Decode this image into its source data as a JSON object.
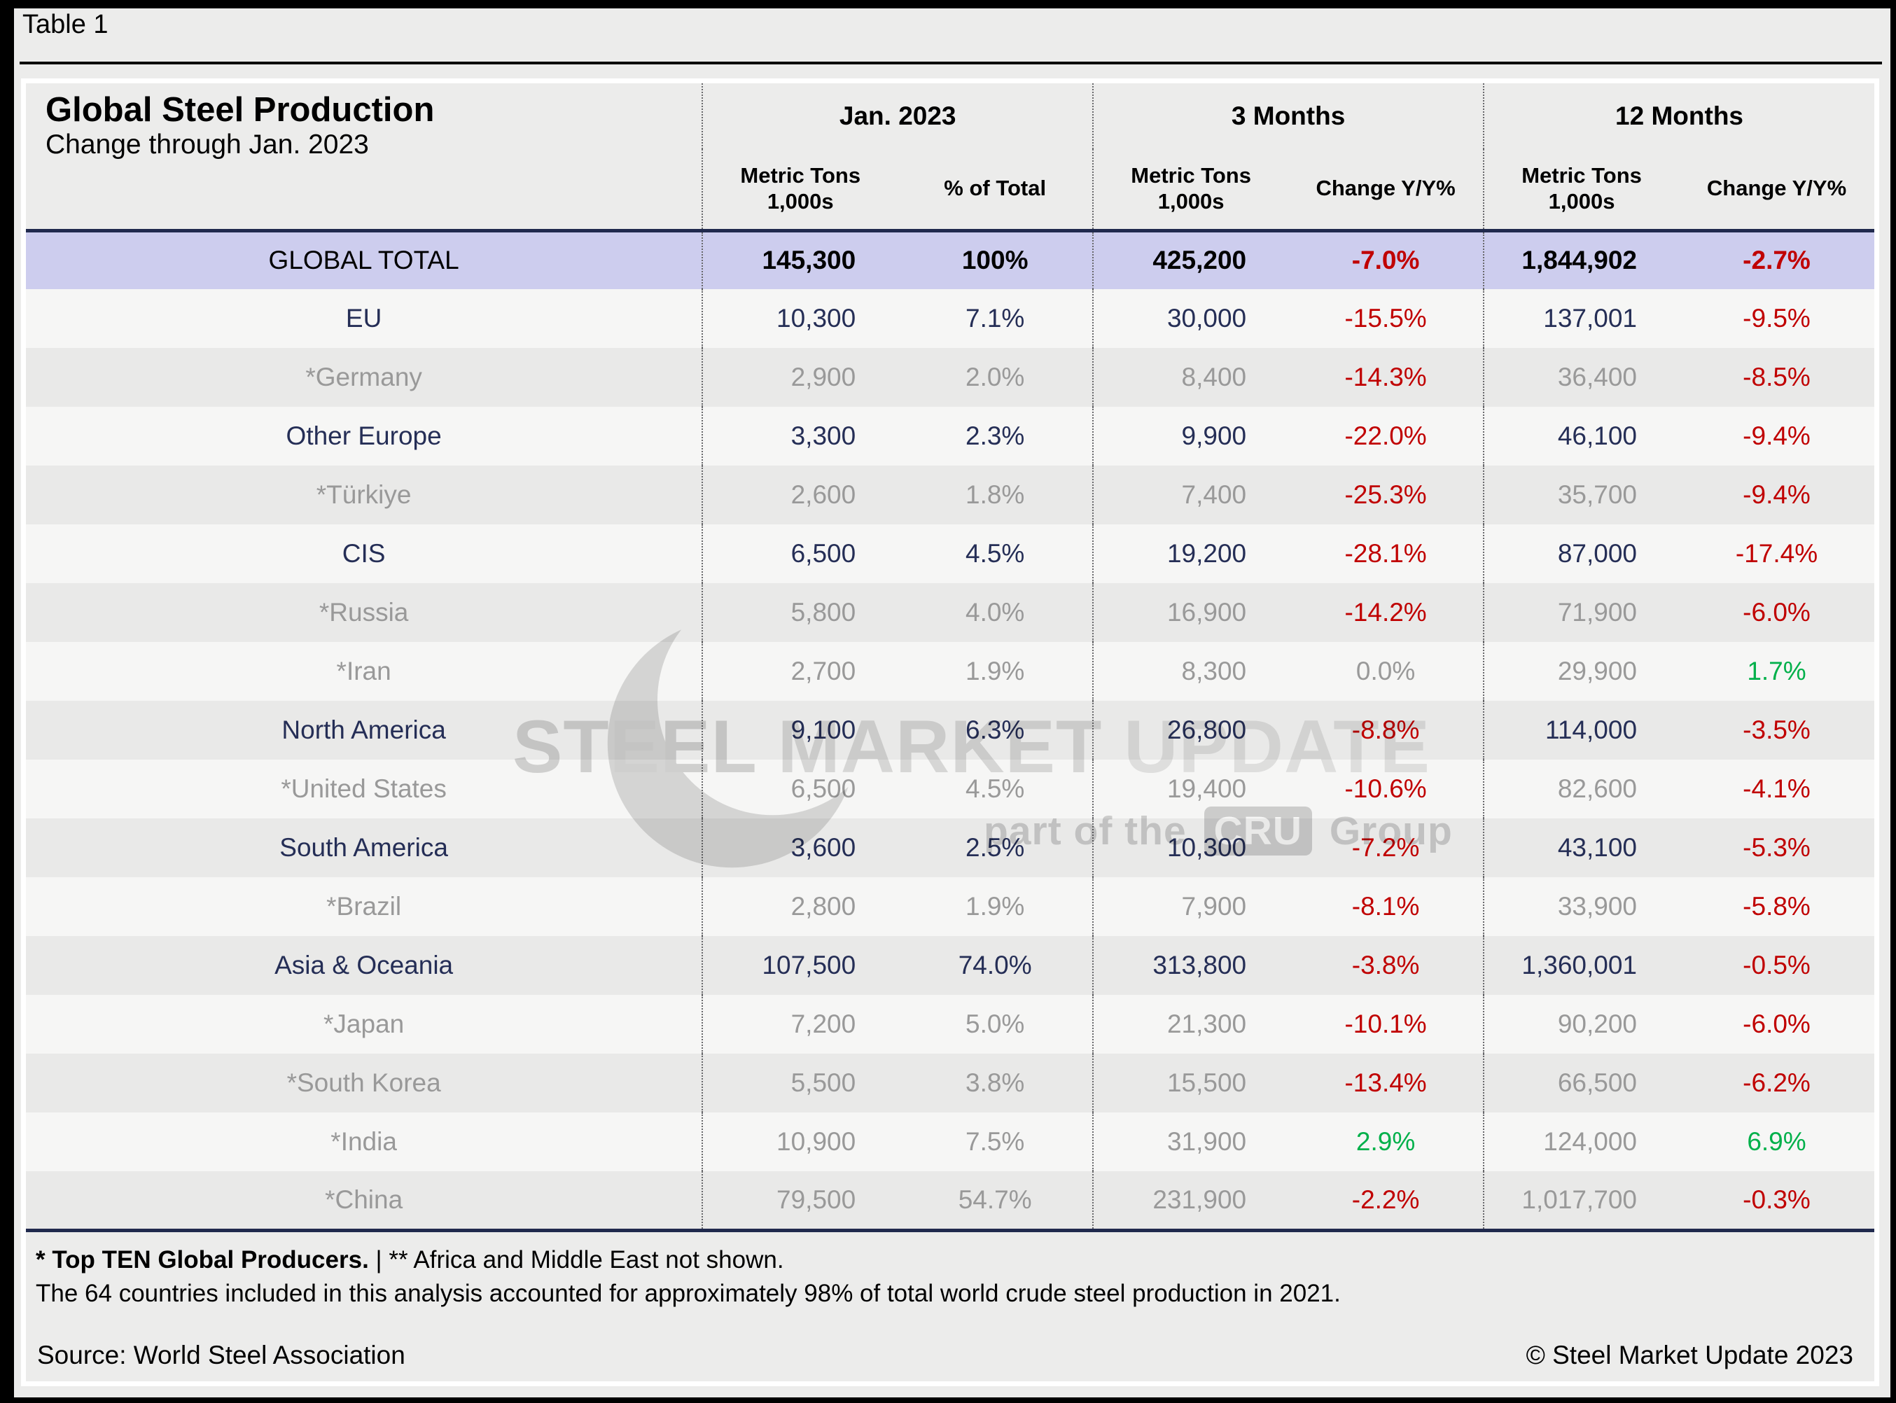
{
  "page": {
    "label": "Table 1"
  },
  "chart_data": {
    "type": "table",
    "title": "Global Steel Production",
    "subtitle": "Change through Jan. 2023",
    "groups": [
      {
        "label": "Jan. 2023",
        "subcols": [
          [
            "Metric Tons",
            "1,000s"
          ],
          [
            "% of Total"
          ]
        ]
      },
      {
        "label": "3 Months",
        "subcols": [
          [
            "Metric Tons",
            "1,000s"
          ],
          [
            "Change Y/Y%"
          ]
        ]
      },
      {
        "label": "12 Months",
        "subcols": [
          [
            "Metric Tons",
            "1,000s"
          ],
          [
            "Change Y/Y%"
          ]
        ]
      }
    ],
    "rows": [
      {
        "label": "GLOBAL TOTAL",
        "type": "total",
        "values": [
          "145,300",
          "100%",
          "425,200",
          "-7.0%",
          "1,844,902",
          "-2.7%"
        ],
        "value_colors": [
          "plain",
          "plain",
          "plain",
          "neg",
          "plain",
          "neg"
        ]
      },
      {
        "label": "EU",
        "type": "region",
        "values": [
          "10,300",
          "7.1%",
          "30,000",
          "-15.5%",
          "137,001",
          "-9.5%"
        ],
        "value_colors": [
          "plain",
          "plain",
          "plain",
          "neg",
          "plain",
          "neg"
        ]
      },
      {
        "label": "*Germany",
        "type": "country",
        "values": [
          "2,900",
          "2.0%",
          "8,400",
          "-14.3%",
          "36,400",
          "-8.5%"
        ],
        "value_colors": [
          "plain",
          "plain",
          "plain",
          "neg",
          "plain",
          "neg"
        ]
      },
      {
        "label": "Other Europe",
        "type": "region",
        "values": [
          "3,300",
          "2.3%",
          "9,900",
          "-22.0%",
          "46,100",
          "-9.4%"
        ],
        "value_colors": [
          "plain",
          "plain",
          "plain",
          "neg",
          "plain",
          "neg"
        ]
      },
      {
        "label": "*Türkiye",
        "type": "country",
        "values": [
          "2,600",
          "1.8%",
          "7,400",
          "-25.3%",
          "35,700",
          "-9.4%"
        ],
        "value_colors": [
          "plain",
          "plain",
          "plain",
          "neg",
          "plain",
          "neg"
        ]
      },
      {
        "label": "CIS",
        "type": "region",
        "values": [
          "6,500",
          "4.5%",
          "19,200",
          "-28.1%",
          "87,000",
          "-17.4%"
        ],
        "value_colors": [
          "plain",
          "plain",
          "plain",
          "neg",
          "plain",
          "neg"
        ]
      },
      {
        "label": "*Russia",
        "type": "country",
        "values": [
          "5,800",
          "4.0%",
          "16,900",
          "-14.2%",
          "71,900",
          "-6.0%"
        ],
        "value_colors": [
          "plain",
          "plain",
          "plain",
          "neg",
          "plain",
          "neg"
        ]
      },
      {
        "label": "*Iran",
        "type": "country",
        "values": [
          "2,700",
          "1.9%",
          "8,300",
          "0.0%",
          "29,900",
          "1.7%"
        ],
        "value_colors": [
          "plain",
          "plain",
          "plain",
          "plain",
          "plain",
          "pos"
        ]
      },
      {
        "label": "North America",
        "type": "region",
        "values": [
          "9,100",
          "6.3%",
          "26,800",
          "-8.8%",
          "114,000",
          "-3.5%"
        ],
        "value_colors": [
          "plain",
          "plain",
          "plain",
          "neg",
          "plain",
          "neg"
        ]
      },
      {
        "label": "*United States",
        "type": "country",
        "values": [
          "6,500",
          "4.5%",
          "19,400",
          "-10.6%",
          "82,600",
          "-4.1%"
        ],
        "value_colors": [
          "plain",
          "plain",
          "plain",
          "neg",
          "plain",
          "neg"
        ]
      },
      {
        "label": "South America",
        "type": "region",
        "values": [
          "3,600",
          "2.5%",
          "10,300",
          "-7.2%",
          "43,100",
          "-5.3%"
        ],
        "value_colors": [
          "plain",
          "plain",
          "plain",
          "neg",
          "plain",
          "neg"
        ]
      },
      {
        "label": "*Brazil",
        "type": "country",
        "values": [
          "2,800",
          "1.9%",
          "7,900",
          "-8.1%",
          "33,900",
          "-5.8%"
        ],
        "value_colors": [
          "plain",
          "plain",
          "plain",
          "neg",
          "plain",
          "neg"
        ]
      },
      {
        "label": "Asia & Oceania",
        "type": "region",
        "values": [
          "107,500",
          "74.0%",
          "313,800",
          "-3.8%",
          "1,360,001",
          "-0.5%"
        ],
        "value_colors": [
          "plain",
          "plain",
          "plain",
          "neg",
          "plain",
          "neg"
        ]
      },
      {
        "label": "*Japan",
        "type": "country",
        "values": [
          "7,200",
          "5.0%",
          "21,300",
          "-10.1%",
          "90,200",
          "-6.0%"
        ],
        "value_colors": [
          "plain",
          "plain",
          "plain",
          "neg",
          "plain",
          "neg"
        ]
      },
      {
        "label": "*South Korea",
        "type": "country",
        "values": [
          "5,500",
          "3.8%",
          "15,500",
          "-13.4%",
          "66,500",
          "-6.2%"
        ],
        "value_colors": [
          "plain",
          "plain",
          "plain",
          "neg",
          "plain",
          "neg"
        ]
      },
      {
        "label": "*India",
        "type": "country",
        "values": [
          "10,900",
          "7.5%",
          "31,900",
          "2.9%",
          "124,000",
          "6.9%"
        ],
        "value_colors": [
          "plain",
          "plain",
          "plain",
          "pos",
          "plain",
          "pos"
        ]
      },
      {
        "label": "*China",
        "type": "country",
        "values": [
          "79,500",
          "54.7%",
          "231,900",
          "-2.2%",
          "1,017,700",
          "-0.3%"
        ],
        "value_colors": [
          "plain",
          "plain",
          "plain",
          "neg",
          "plain",
          "neg"
        ]
      }
    ]
  },
  "footnotes": {
    "fn1_bold": "* Top TEN Global Producers.",
    "fn1_rest": "| ** Africa and Middle East not shown.",
    "fn2": "The 64 countries included in this analysis accounted for approximately 98% of total world crude steel production in 2021.",
    "source": "Source: World Steel Association",
    "copyright": "© Steel Market Update 2023"
  },
  "watermark": {
    "brand": [
      "STEEL",
      "MARKET",
      "UPDATE"
    ],
    "tagline_prefix": "part of the",
    "tagline_box": "CRU",
    "tagline_suffix": "Group"
  },
  "colors": {
    "total_row_lavender": "#cdcdee",
    "negative_red": "#c00000",
    "positive_green": "#00b04a",
    "region_navy": "#252e56",
    "country_gray": "#999999",
    "page_gray": "#ececeb",
    "row_light": "#f6f6f5",
    "row_dark": "#e9e9e8"
  }
}
